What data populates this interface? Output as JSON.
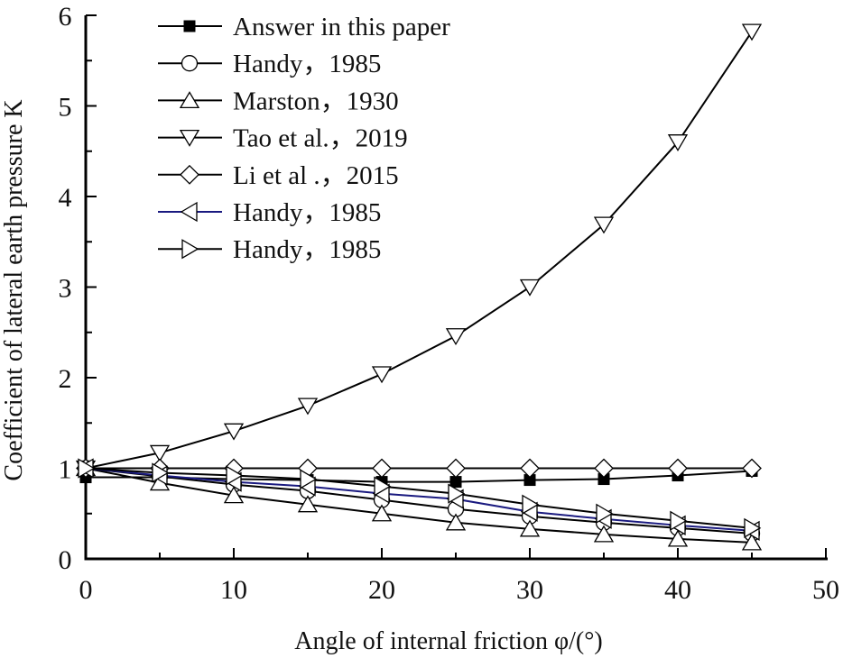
{
  "chart_data": {
    "type": "line",
    "title": "",
    "xlabel": "Angle of internal friction φ/(°)",
    "ylabel": "Coefficient of lateral earth pressure K",
    "xlim": [
      0,
      50
    ],
    "ylim": [
      0,
      6
    ],
    "xticks": [
      0,
      10,
      20,
      30,
      40,
      50
    ],
    "yticks": [
      0,
      1,
      2,
      3,
      4,
      5,
      6
    ],
    "x_minor_step": 5,
    "y_minor_step": 0.5,
    "grid": false,
    "legend_position": "upper-left",
    "x": [
      0,
      5,
      10,
      15,
      20,
      25,
      30,
      35,
      40,
      45
    ],
    "series": [
      {
        "name": "Answer in this paper",
        "marker": "square-filled",
        "color": "#000000",
        "values": [
          0.9,
          0.9,
          0.88,
          0.87,
          0.85,
          0.85,
          0.87,
          0.88,
          0.92,
          0.97
        ]
      },
      {
        "name": "Handy，1985",
        "marker": "circle",
        "color": "#000000",
        "values": [
          1.0,
          0.91,
          0.82,
          0.75,
          0.65,
          0.55,
          0.47,
          0.4,
          0.34,
          0.28
        ]
      },
      {
        "name": "Marston，1930",
        "marker": "triangle-up",
        "color": "#000000",
        "values": [
          1.0,
          0.84,
          0.7,
          0.6,
          0.5,
          0.4,
          0.33,
          0.27,
          0.22,
          0.18
        ]
      },
      {
        "name": "Tao et al.，2019",
        "marker": "triangle-down",
        "color": "#000000",
        "values": [
          1.0,
          1.17,
          1.41,
          1.69,
          2.04,
          2.46,
          3.0,
          3.69,
          4.6,
          5.82
        ]
      },
      {
        "name": "Li et al .，2015",
        "marker": "diamond",
        "color": "#000000",
        "values": [
          1.0,
          1.0,
          1.0,
          1.0,
          1.0,
          1.0,
          1.0,
          1.0,
          1.0,
          1.0
        ]
      },
      {
        "name": "Handy，1985",
        "marker": "triangle-left",
        "color": "#1a1a80",
        "values": [
          1.0,
          0.92,
          0.85,
          0.8,
          0.72,
          0.66,
          0.52,
          0.44,
          0.37,
          0.31
        ]
      },
      {
        "name": "Handy，1985",
        "marker": "triangle-right",
        "color": "#000000",
        "values": [
          1.0,
          0.95,
          0.92,
          0.88,
          0.8,
          0.72,
          0.6,
          0.5,
          0.42,
          0.34
        ]
      }
    ]
  }
}
